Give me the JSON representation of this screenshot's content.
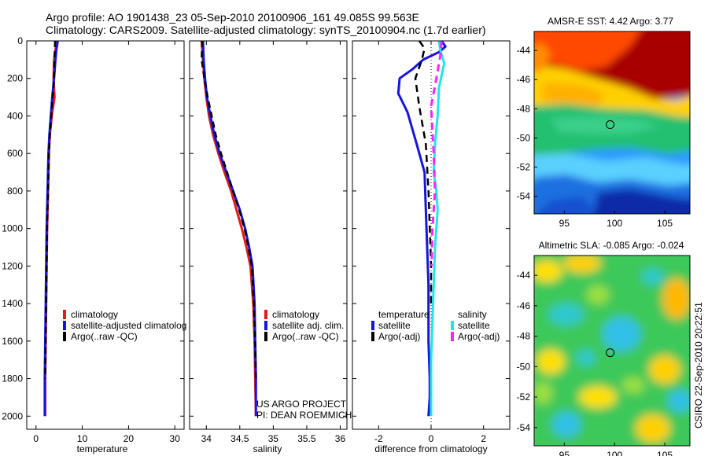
{
  "header": {
    "line1": "Argo profile: AO 1901438_23 05-Sep-2010 20100906_161 49.085S 99.563E",
    "line2": "Climatology: CARS2009. Satellite-adjusted climatology: synTS_20100904.nc (1.7d earlier)"
  },
  "colors": {
    "climatology": "#e31a1c",
    "satellite": "#1515e0",
    "argo": "#000000",
    "salinity_satellite": "#22e6e6",
    "salinity_argo": "#ff22ff"
  },
  "footer": {
    "project": "US ARGO PROJECT",
    "pi": "PI: DEAN ROEMMICH",
    "stamp": "CSIRO 22-Sep-2010 20:22:51"
  },
  "chart_data": [
    {
      "id": "temperature",
      "type": "line",
      "xlabel": "temperature",
      "ylabel": "",
      "xlim": [
        -2,
        32
      ],
      "ylim": [
        2070,
        0
      ],
      "xticks": [
        0,
        10,
        20,
        30
      ],
      "yticks": [
        0,
        200,
        400,
        600,
        800,
        1000,
        1200,
        1400,
        1600,
        1800,
        2000
      ],
      "legend": [
        "climatology",
        "satellite-adjusted climatolog",
        "Argo(..raw -QC)"
      ],
      "series": [
        {
          "name": "climatology",
          "color": "#e31a1c",
          "width": 3,
          "dash": "",
          "x": [
            4.5,
            4.2,
            3.9,
            3.8,
            4.0,
            3.4,
            3.0,
            2.8,
            2.6,
            2.4,
            2.3,
            2.2,
            2.1,
            2.0,
            2.0
          ],
          "y": [
            0,
            50,
            100,
            200,
            300,
            400,
            500,
            600,
            800,
            1000,
            1200,
            1400,
            1600,
            1800,
            2000
          ]
        },
        {
          "name": "satellite-adjusted climatolog",
          "color": "#1515e0",
          "width": 3,
          "dash": "",
          "x": [
            4.7,
            4.4,
            4.2,
            3.9,
            3.5,
            3.2,
            2.9,
            2.7,
            2.5,
            2.3,
            2.2,
            2.1,
            2.0,
            1.9,
            1.9
          ],
          "y": [
            0,
            50,
            100,
            200,
            300,
            400,
            500,
            600,
            800,
            1000,
            1200,
            1400,
            1600,
            1800,
            2000
          ]
        },
        {
          "name": "Argo(..raw -QC)",
          "color": "#000000",
          "width": 2.5,
          "dash": "8,5",
          "x": [
            4.1,
            4.1,
            4.0,
            3.9,
            3.6,
            3.3,
            3.0,
            2.8,
            2.6,
            2.4,
            2.3,
            2.2,
            2.1,
            2.0
          ],
          "y": [
            0,
            40,
            80,
            200,
            300,
            400,
            500,
            600,
            800,
            1000,
            1200,
            1400,
            1600,
            1800
          ]
        }
      ]
    },
    {
      "id": "salinity",
      "type": "line",
      "xlabel": "salinity",
      "ylabel": "",
      "xlim": [
        33.75,
        36.1
      ],
      "ylim": [
        2070,
        0
      ],
      "xticks": [
        34,
        34.5,
        35,
        35.5,
        36
      ],
      "xticklabels": [
        "34",
        "34.5",
        "35",
        "35.5",
        "36"
      ],
      "legend": [
        "climatology",
        "satellite adj. clim.",
        "Argo(..raw -QC)"
      ],
      "series": [
        {
          "name": "climatology",
          "color": "#e31a1c",
          "width": 3,
          "dash": "",
          "x": [
            33.93,
            33.95,
            33.97,
            34.0,
            34.04,
            34.1,
            34.18,
            34.27,
            34.37,
            34.45,
            34.53,
            34.6,
            34.66,
            34.7,
            34.72,
            34.73,
            34.74
          ],
          "y": [
            0,
            100,
            200,
            300,
            400,
            500,
            600,
            700,
            800,
            900,
            1000,
            1100,
            1200,
            1400,
            1600,
            1800,
            2000
          ]
        },
        {
          "name": "satellite adj. clim.",
          "color": "#1515e0",
          "width": 3,
          "dash": "",
          "x": [
            33.95,
            33.96,
            33.98,
            34.01,
            34.06,
            34.12,
            34.2,
            34.3,
            34.4,
            34.5,
            34.58,
            34.64,
            34.69,
            34.72,
            34.73,
            34.74,
            34.74
          ],
          "y": [
            0,
            100,
            200,
            300,
            400,
            500,
            600,
            700,
            800,
            900,
            1000,
            1100,
            1200,
            1400,
            1600,
            1800,
            2000
          ]
        },
        {
          "name": "Argo(..raw -QC)",
          "color": "#000000",
          "width": 2.5,
          "dash": "8,5",
          "x": [
            33.94,
            33.93,
            33.97,
            34.02,
            34.08,
            34.14,
            34.22,
            34.31,
            34.4,
            34.49,
            34.57,
            34.63,
            34.68,
            34.71,
            34.73,
            34.74
          ],
          "y": [
            0,
            100,
            200,
            300,
            400,
            500,
            600,
            700,
            800,
            900,
            1000,
            1100,
            1200,
            1400,
            1600,
            1800
          ]
        }
      ]
    },
    {
      "id": "difference",
      "type": "line",
      "xlabel": "difference from climatology",
      "ylabel": "",
      "xlim": [
        -3,
        3
      ],
      "ylim": [
        2070,
        0
      ],
      "xticks": [
        -2,
        0,
        2
      ],
      "legend_temperature": {
        "title": "temperature",
        "items": [
          "satellite",
          "Argo(-adj)"
        ]
      },
      "legend_salinity": {
        "title": "salinity",
        "items": [
          "satellite",
          "Argo(-adj)"
        ]
      },
      "series": [
        {
          "name": "temperature satellite",
          "color": "#1515e0",
          "width": 3,
          "dash": "",
          "x": [
            0.4,
            0.55,
            0.3,
            -0.3,
            -0.7,
            -1.2,
            -1.25,
            -0.9,
            -0.55,
            -0.25,
            -0.2,
            -0.15,
            -0.1,
            -0.1,
            -0.1,
            -0.05,
            -0.05,
            -0.1
          ],
          "y": [
            0,
            30,
            60,
            100,
            150,
            200,
            280,
            380,
            550,
            700,
            900,
            1100,
            1300,
            1400,
            1600,
            1800,
            1900,
            2000
          ]
        },
        {
          "name": "temperature Argo(-adj)",
          "color": "#000000",
          "width": 2.5,
          "dash": "9,6",
          "x": [
            -0.45,
            -0.25,
            -0.35,
            -0.6,
            -0.45,
            -0.2,
            -0.1,
            -0.05,
            0.0,
            0.0
          ],
          "y": [
            0,
            40,
            100,
            200,
            350,
            550,
            800,
            1000,
            1200,
            1400
          ]
        },
        {
          "name": "salinity satellite",
          "color": "#22e6e6",
          "width": 3,
          "dash": "",
          "x": [
            0.3,
            0.35,
            0.5,
            0.3,
            0.25,
            0.15,
            0.1,
            0.2,
            0.25,
            0.2,
            0.15,
            0.1,
            0.05,
            0.0,
            0.0,
            0.0
          ],
          "y": [
            0,
            50,
            120,
            250,
            400,
            550,
            700,
            800,
            900,
            1000,
            1100,
            1300,
            1500,
            1700,
            1900,
            2000
          ]
        },
        {
          "name": "salinity Argo(-adj)",
          "color": "#ff22ff",
          "width": 3,
          "dash": "9,6",
          "x": [
            0.4,
            0.35,
            0.2,
            0.0,
            0.1,
            0.15,
            0.05,
            0.02
          ],
          "y": [
            0,
            80,
            200,
            350,
            600,
            800,
            1000,
            1200
          ]
        }
      ]
    },
    {
      "id": "sst_map",
      "type": "heatmap",
      "title": "AMSR-E SST: 4.42  Argo: 3.77",
      "xlim": [
        92,
        107.5
      ],
      "ylim": [
        -55.2,
        -42.7
      ],
      "xticks": [
        95,
        100,
        105
      ],
      "yticks": [
        -44,
        -46,
        -48,
        -50,
        -52,
        -54
      ],
      "marker": {
        "lon": 99.563,
        "lat": -49.085
      },
      "colormap": "jet"
    },
    {
      "id": "sla_map",
      "type": "heatmap",
      "title": "Altimetric SLA: -0.085  Argo: -0.024",
      "xlim": [
        92,
        107.5
      ],
      "ylim": [
        -55.2,
        -42.7
      ],
      "xticks": [
        95,
        100,
        105
      ],
      "yticks": [
        -44,
        -46,
        -48,
        -50,
        -52,
        -54
      ],
      "marker": {
        "lon": 99.563,
        "lat": -49.085
      },
      "colormap": "jet"
    }
  ]
}
